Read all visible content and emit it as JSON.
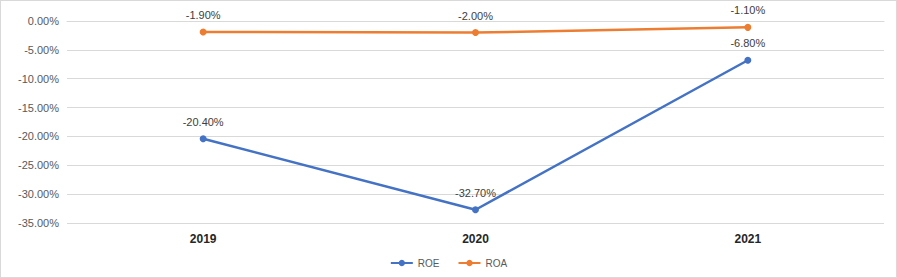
{
  "chart_data": {
    "type": "line",
    "categories": [
      "2019",
      "2020",
      "2021"
    ],
    "series": [
      {
        "name": "ROE",
        "color": "#4472c4",
        "values": [
          -20.4,
          -32.7,
          -6.8
        ],
        "value_labels": [
          "-20.40%",
          "-32.70%",
          "-6.80%"
        ]
      },
      {
        "name": "ROA",
        "color": "#ed7d31",
        "values": [
          -1.9,
          -2.0,
          -1.1
        ],
        "value_labels": [
          "-1.90%",
          "-2.00%",
          "-1.10%"
        ]
      }
    ],
    "ylim": [
      -35,
      0
    ],
    "yticks": [
      {
        "value": -35,
        "label": "-35.00%"
      },
      {
        "value": -30,
        "label": "-30.00%"
      },
      {
        "value": -25,
        "label": "-25.00%"
      },
      {
        "value": -20,
        "label": "-20.00%"
      },
      {
        "value": -15,
        "label": "-15.00%"
      },
      {
        "value": -10,
        "label": "-10.00%"
      },
      {
        "value": -5,
        "label": "-5.00%"
      },
      {
        "value": 0,
        "label": "0.00%"
      }
    ],
    "grid": true,
    "legend": "bottom",
    "data_labels": true,
    "marker": "circle"
  }
}
